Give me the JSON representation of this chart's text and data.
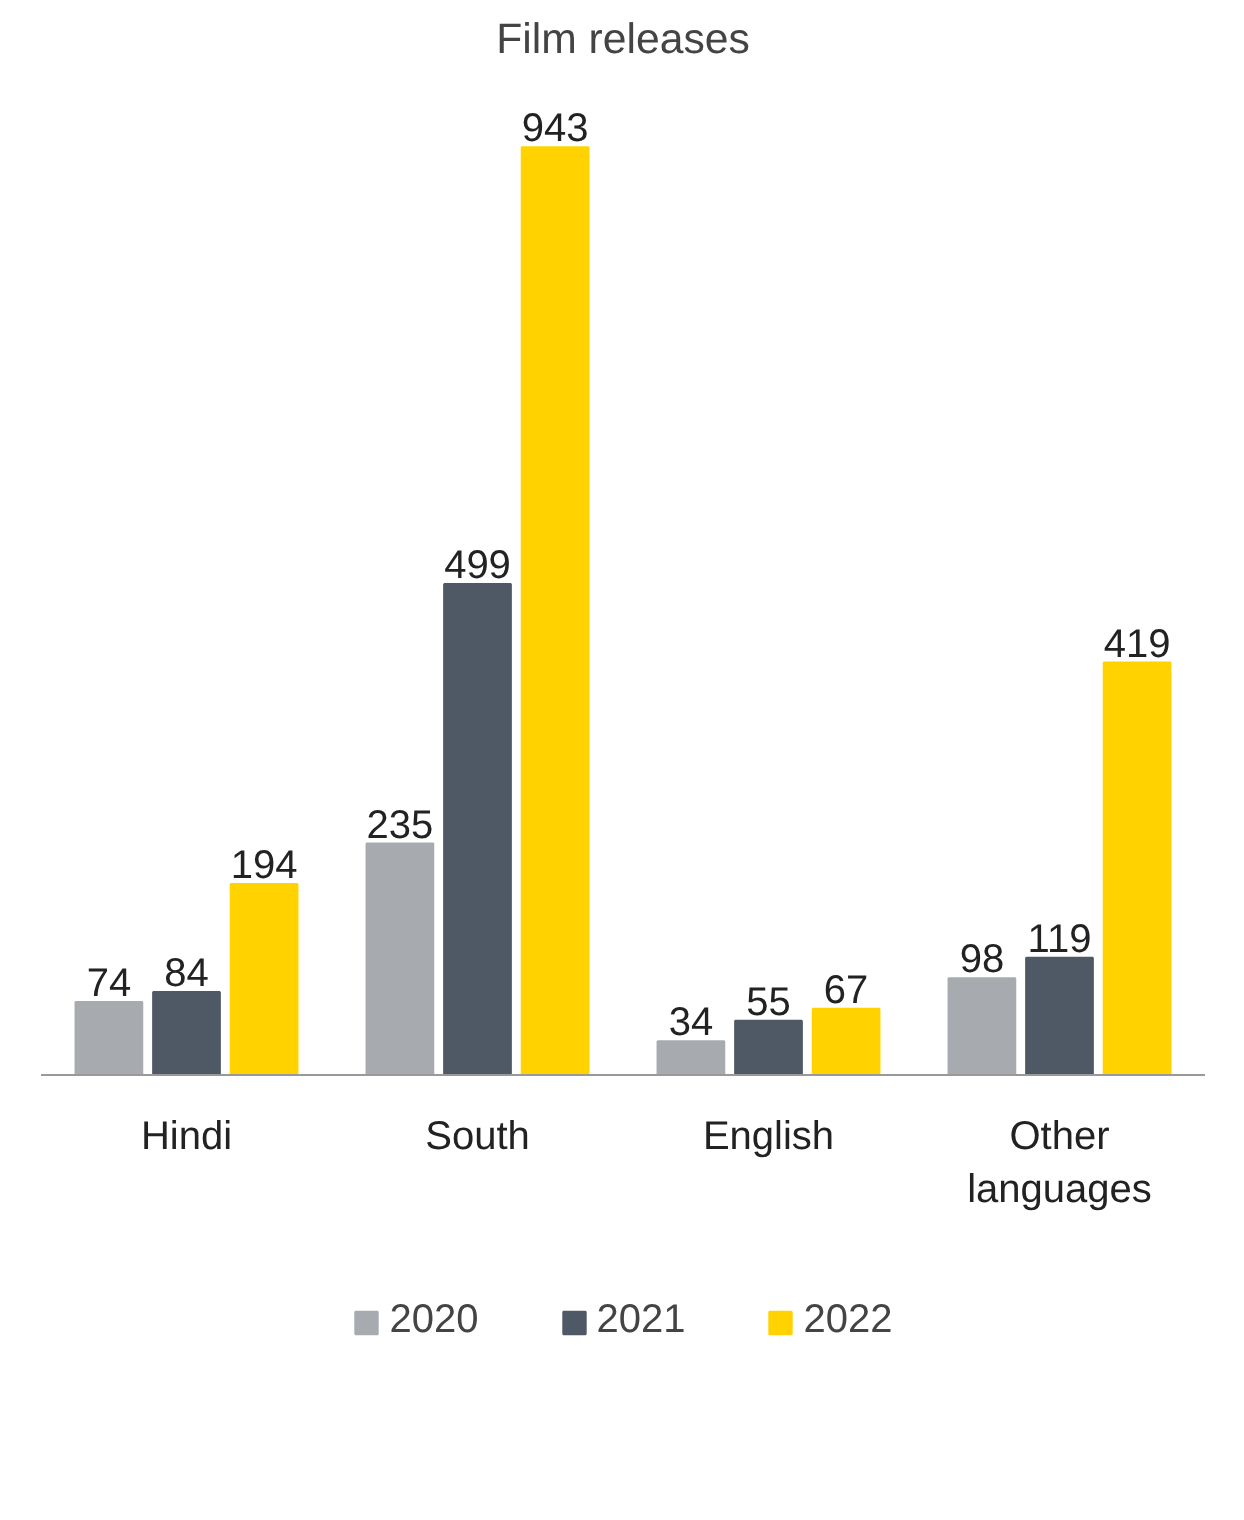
{
  "chart_data": {
    "type": "bar",
    "title": "Film releases",
    "categories": [
      "Hindi",
      "South",
      "English",
      "Other languages"
    ],
    "series": [
      {
        "name": "2020",
        "color": "#a7abb0",
        "values": [
          74,
          235,
          34,
          98
        ]
      },
      {
        "name": "2021",
        "color": "#4f5966",
        "values": [
          84,
          499,
          55,
          119
        ]
      },
      {
        "name": "2022",
        "color": "#ffd200",
        "values": [
          194,
          943,
          67,
          419
        ]
      }
    ],
    "data_labels": true,
    "legend": "bottom",
    "grid": false
  }
}
